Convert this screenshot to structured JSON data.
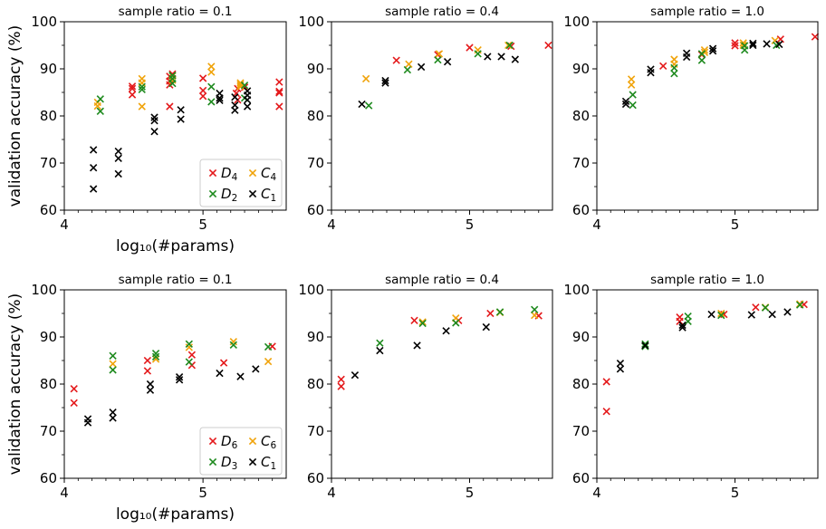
{
  "colors": {
    "D_large": "#e41a1c",
    "C_large": "#f0a30a",
    "D_small": "#1e8a1e",
    "C_1": "#000000"
  },
  "chart_data": [
    {
      "type": "scatter",
      "title": "sample ratio = 0.1",
      "xlabel": "log₁₀(#params)",
      "ylabel": "validation accuracy (%)",
      "xlim": [
        4.0,
        5.6
      ],
      "ylim": [
        60,
        100
      ],
      "xticks": [
        "4",
        "5"
      ],
      "yticks": [
        "60",
        "70",
        "80",
        "90",
        "100"
      ],
      "legend": {
        "placement": "lower-right"
      },
      "series": [
        {
          "name": "D4",
          "label_main": "D",
          "label_sub": "4",
          "color": "#e41a1c",
          "points": [
            [
              4.49,
              85.8
            ],
            [
              4.49,
              84.5
            ],
            [
              4.49,
              86.3
            ],
            [
              4.76,
              86.6
            ],
            [
              4.76,
              87.4
            ],
            [
              4.76,
              82.0
            ],
            [
              4.76,
              88.4
            ],
            [
              4.78,
              88.9
            ],
            [
              5.0,
              88.0
            ],
            [
              5.0,
              85.4
            ],
            [
              5.0,
              84.2
            ],
            [
              5.24,
              84.8
            ],
            [
              5.25,
              85.8
            ],
            [
              5.25,
              83.4
            ],
            [
              5.3,
              86.1
            ],
            [
              5.55,
              87.2
            ],
            [
              5.55,
              84.9
            ],
            [
              5.55,
              85.2
            ],
            [
              5.55,
              82.0
            ]
          ]
        },
        {
          "name": "C4",
          "label_main": "C",
          "label_sub": "4",
          "color": "#f0a30a",
          "points": [
            [
              4.24,
              82.9
            ],
            [
              4.24,
              82.1
            ],
            [
              4.56,
              87.9
            ],
            [
              4.56,
              87.0
            ],
            [
              4.56,
              82.0
            ],
            [
              4.78,
              88.5
            ],
            [
              4.78,
              87.6
            ],
            [
              5.06,
              90.5
            ],
            [
              5.06,
              89.3
            ],
            [
              5.27,
              87.0
            ],
            [
              5.27,
              86.6
            ],
            [
              5.27,
              86.2
            ]
          ]
        },
        {
          "name": "D2",
          "label_main": "D",
          "label_sub": "2",
          "color": "#1e8a1e",
          "points": [
            [
              4.26,
              83.6
            ],
            [
              4.26,
              81.0
            ],
            [
              4.56,
              86.2
            ],
            [
              4.56,
              85.6
            ],
            [
              4.78,
              88.6
            ],
            [
              4.78,
              87.9
            ],
            [
              4.78,
              86.9
            ],
            [
              5.06,
              86.2
            ],
            [
              5.06,
              83.0
            ],
            [
              5.3,
              86.5
            ],
            [
              5.3,
              83.8
            ]
          ]
        },
        {
          "name": "C1",
          "label_main": "C",
          "label_sub": "1",
          "color": "#000000",
          "points": [
            [
              4.21,
              72.8
            ],
            [
              4.21,
              69.0
            ],
            [
              4.21,
              64.5
            ],
            [
              4.39,
              72.5
            ],
            [
              4.39,
              71.0
            ],
            [
              4.39,
              67.7
            ],
            [
              4.65,
              79.7
            ],
            [
              4.65,
              79.0
            ],
            [
              4.65,
              76.7
            ],
            [
              4.84,
              81.3
            ],
            [
              4.84,
              79.3
            ],
            [
              5.12,
              84.8
            ],
            [
              5.12,
              83.8
            ],
            [
              5.12,
              83.3
            ],
            [
              5.23,
              84.0
            ],
            [
              5.23,
              82.3
            ],
            [
              5.23,
              81.2
            ],
            [
              5.32,
              85.3
            ],
            [
              5.32,
              84.4
            ],
            [
              5.32,
              83.4
            ],
            [
              5.32,
              82.0
            ]
          ]
        }
      ]
    },
    {
      "type": "scatter",
      "title": "sample ratio = 0.4",
      "xlim": [
        4.0,
        5.6
      ],
      "ylim": [
        60,
        100
      ],
      "xticks": [
        "4",
        "5"
      ],
      "yticks": [
        "60",
        "70",
        "80",
        "90",
        "100"
      ],
      "series": [
        {
          "color": "#e41a1c",
          "points": [
            [
              4.47,
              91.8
            ],
            [
              4.77,
              93.0
            ],
            [
              5.0,
              94.5
            ],
            [
              5.3,
              94.8
            ],
            [
              5.57,
              95.0
            ]
          ]
        },
        {
          "color": "#f0a30a",
          "points": [
            [
              4.25,
              87.9
            ],
            [
              4.56,
              91.0
            ],
            [
              4.78,
              93.2
            ],
            [
              5.06,
              94.0
            ],
            [
              5.28,
              95.0
            ]
          ]
        },
        {
          "color": "#1e8a1e",
          "points": [
            [
              4.27,
              82.2
            ],
            [
              4.55,
              89.8
            ],
            [
              4.77,
              91.9
            ],
            [
              5.06,
              93.2
            ],
            [
              5.29,
              95.0
            ]
          ]
        },
        {
          "color": "#000000",
          "points": [
            [
              4.22,
              82.5
            ],
            [
              4.39,
              87.5
            ],
            [
              4.39,
              87.0
            ],
            [
              4.65,
              90.4
            ],
            [
              4.84,
              91.5
            ],
            [
              5.13,
              92.6
            ],
            [
              5.23,
              92.6
            ],
            [
              5.33,
              92.0
            ]
          ]
        }
      ]
    },
    {
      "type": "scatter",
      "title": "sample ratio = 1.0",
      "xlim": [
        4.0,
        5.6
      ],
      "ylim": [
        60,
        100
      ],
      "xticks": [
        "4",
        "5"
      ],
      "yticks": [
        "60",
        "70",
        "80",
        "90",
        "100"
      ],
      "series": [
        {
          "color": "#e41a1c",
          "points": [
            [
              4.48,
              90.6
            ],
            [
              4.76,
              93.0
            ],
            [
              5.0,
              94.9
            ],
            [
              5.0,
              95.5
            ],
            [
              5.33,
              96.3
            ],
            [
              5.58,
              96.8
            ]
          ]
        },
        {
          "color": "#f0a30a",
          "points": [
            [
              4.25,
              87.8
            ],
            [
              4.25,
              86.6
            ],
            [
              4.56,
              92.0
            ],
            [
              4.56,
              91.0
            ],
            [
              4.78,
              94.0
            ],
            [
              4.78,
              93.5
            ],
            [
              5.06,
              95.5
            ],
            [
              5.06,
              95.0
            ],
            [
              5.29,
              96.0
            ]
          ]
        },
        {
          "color": "#1e8a1e",
          "points": [
            [
              4.26,
              84.5
            ],
            [
              4.26,
              82.3
            ],
            [
              4.56,
              90.2
            ],
            [
              4.56,
              89.0
            ],
            [
              4.76,
              91.8
            ],
            [
              4.76,
              93.2
            ],
            [
              5.07,
              94.0
            ],
            [
              5.07,
              94.9
            ],
            [
              5.3,
              95.0
            ]
          ]
        },
        {
          "color": "#000000",
          "points": [
            [
              4.21,
              83.1
            ],
            [
              4.21,
              82.5
            ],
            [
              4.39,
              89.9
            ],
            [
              4.39,
              89.2
            ],
            [
              4.65,
              93.3
            ],
            [
              4.65,
              92.5
            ],
            [
              4.84,
              94.3
            ],
            [
              4.84,
              93.8
            ],
            [
              5.13,
              95.4
            ],
            [
              5.13,
              95.0
            ],
            [
              5.23,
              95.3
            ],
            [
              5.32,
              95.2
            ]
          ]
        }
      ]
    },
    {
      "type": "scatter",
      "title": "sample ratio = 0.1",
      "xlabel": "log₁₀(#params)",
      "ylabel": "validation accuracy (%)",
      "xlim": [
        4.0,
        5.6
      ],
      "ylim": [
        60,
        100
      ],
      "xticks": [
        "4",
        "5"
      ],
      "yticks": [
        "60",
        "70",
        "80",
        "90",
        "100"
      ],
      "legend": {
        "placement": "lower-right"
      },
      "series": [
        {
          "name": "D6",
          "label_main": "D",
          "label_sub": "6",
          "color": "#e41a1c",
          "points": [
            [
              4.07,
              79.0
            ],
            [
              4.07,
              76.0
            ],
            [
              4.6,
              85.0
            ],
            [
              4.6,
              82.8
            ],
            [
              4.92,
              86.2
            ],
            [
              4.92,
              84.0
            ],
            [
              5.15,
              84.5
            ],
            [
              5.5,
              88.0
            ]
          ]
        },
        {
          "name": "C6",
          "label_main": "C",
          "label_sub": "6",
          "color": "#f0a30a",
          "points": [
            [
              4.35,
              84.3
            ],
            [
              4.66,
              85.3
            ],
            [
              4.9,
              87.8
            ],
            [
              5.22,
              89.0
            ],
            [
              5.47,
              84.8
            ]
          ]
        },
        {
          "name": "D3",
          "label_main": "D",
          "label_sub": "3",
          "color": "#1e8a1e",
          "points": [
            [
              4.35,
              86.0
            ],
            [
              4.35,
              83.0
            ],
            [
              4.66,
              86.5
            ],
            [
              4.66,
              85.8
            ],
            [
              4.9,
              88.5
            ],
            [
              4.9,
              84.7
            ],
            [
              5.22,
              88.3
            ],
            [
              5.47,
              87.9
            ]
          ]
        },
        {
          "name": "C1",
          "label_main": "C",
          "label_sub": "1",
          "color": "#000000",
          "points": [
            [
              4.17,
              72.6
            ],
            [
              4.17,
              71.8
            ],
            [
              4.35,
              74.0
            ],
            [
              4.35,
              72.8
            ],
            [
              4.62,
              80.0
            ],
            [
              4.62,
              78.7
            ],
            [
              4.83,
              81.5
            ],
            [
              4.83,
              80.9
            ],
            [
              5.12,
              82.3
            ],
            [
              5.27,
              81.6
            ],
            [
              5.38,
              83.2
            ]
          ]
        }
      ]
    },
    {
      "type": "scatter",
      "title": "sample ratio = 0.4",
      "xlim": [
        4.0,
        5.6
      ],
      "ylim": [
        60,
        100
      ],
      "xticks": [
        "4",
        "5"
      ],
      "yticks": [
        "60",
        "70",
        "80",
        "90",
        "100"
      ],
      "series": [
        {
          "color": "#e41a1c",
          "points": [
            [
              4.07,
              81.0
            ],
            [
              4.07,
              79.5
            ],
            [
              4.6,
              93.5
            ],
            [
              4.92,
              93.5
            ],
            [
              5.15,
              95.0
            ],
            [
              5.5,
              94.5
            ]
          ]
        },
        {
          "color": "#f0a30a",
          "points": [
            [
              4.66,
              93.2
            ],
            [
              4.9,
              94.0
            ],
            [
              5.22,
              95.2
            ],
            [
              5.47,
              94.6
            ]
          ]
        },
        {
          "color": "#1e8a1e",
          "points": [
            [
              4.35,
              88.7
            ],
            [
              4.66,
              92.9
            ],
            [
              4.9,
              93.0
            ],
            [
              5.22,
              95.3
            ],
            [
              5.47,
              95.8
            ]
          ]
        },
        {
          "color": "#000000",
          "points": [
            [
              4.17,
              81.9
            ],
            [
              4.35,
              87.1
            ],
            [
              4.62,
              88.2
            ],
            [
              4.83,
              91.3
            ],
            [
              5.12,
              92.1
            ]
          ]
        }
      ]
    },
    {
      "type": "scatter",
      "title": "sample ratio = 1.0",
      "xlim": [
        4.0,
        5.6
      ],
      "ylim": [
        60,
        100
      ],
      "xticks": [
        "4",
        "5"
      ],
      "yticks": [
        "60",
        "70",
        "80",
        "90",
        "100"
      ],
      "series": [
        {
          "color": "#e41a1c",
          "points": [
            [
              4.07,
              80.5
            ],
            [
              4.07,
              74.2
            ],
            [
              4.6,
              94.2
            ],
            [
              4.6,
              93.3
            ],
            [
              4.92,
              94.8
            ],
            [
              5.15,
              96.3
            ],
            [
              5.5,
              96.9
            ]
          ]
        },
        {
          "color": "#f0a30a",
          "points": [
            [
              4.9,
              95.0
            ],
            [
              5.22,
              96.3
            ],
            [
              5.47,
              97.0
            ]
          ]
        },
        {
          "color": "#1e8a1e",
          "points": [
            [
              4.35,
              88.5
            ],
            [
              4.35,
              88.0
            ],
            [
              4.66,
              94.4
            ],
            [
              4.66,
              93.3
            ],
            [
              4.9,
              94.6
            ],
            [
              5.22,
              96.2
            ],
            [
              5.47,
              96.8
            ]
          ]
        },
        {
          "color": "#000000",
          "points": [
            [
              4.17,
              84.4
            ],
            [
              4.17,
              83.2
            ],
            [
              4.35,
              88.2
            ],
            [
              4.62,
              92.5
            ],
            [
              4.62,
              92.0
            ],
            [
              4.83,
              94.8
            ],
            [
              5.12,
              94.7
            ],
            [
              5.27,
              94.8
            ],
            [
              5.38,
              95.3
            ]
          ]
        }
      ]
    }
  ]
}
